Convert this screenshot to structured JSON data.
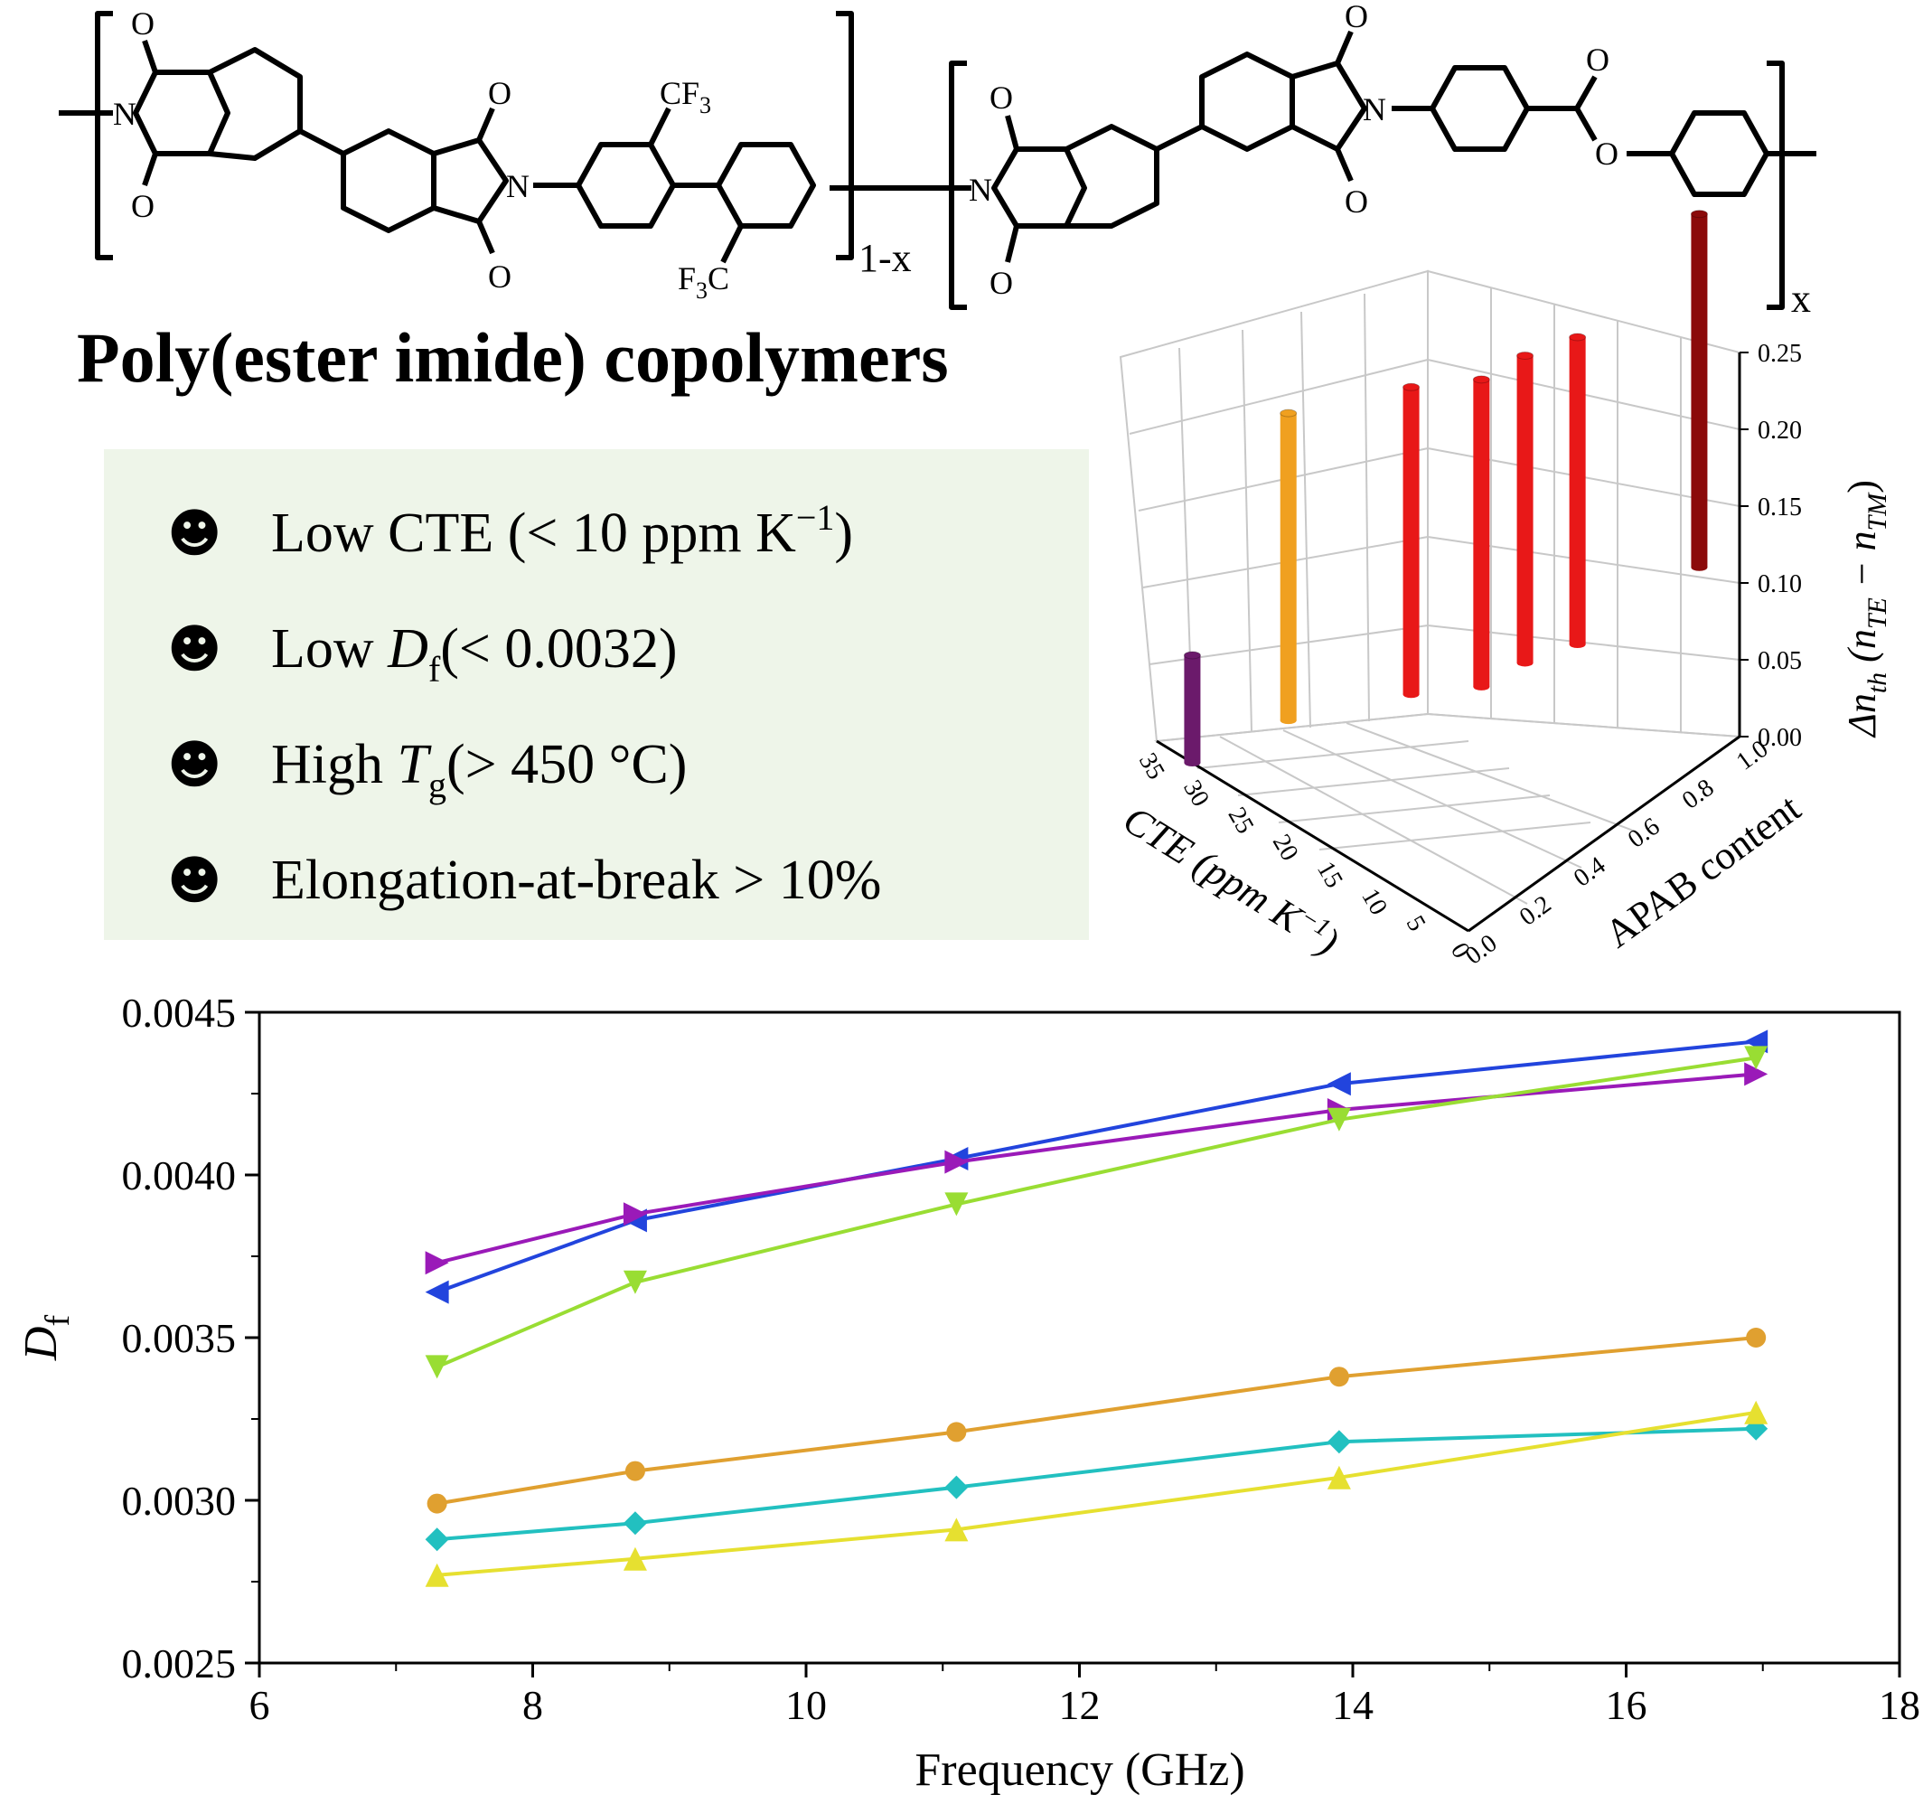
{
  "structure": {
    "atoms": {
      "oxygen": "O",
      "nitrogen": "N",
      "cf3_top": "CF",
      "cf3_top_sub": "3",
      "cf3_bottom_f": "F",
      "cf3_bottom_sub": "3",
      "cf3_bottom_c": "C"
    },
    "subscript_left": "1-x",
    "subscript_right": "x"
  },
  "title": "Poly(ester imide) copolymers",
  "features_box": {
    "background": "#eef5e9",
    "items": [
      {
        "icon": "smiley-icon",
        "text": "Low CTE (< 10 ppm K",
        "sup": "−1",
        "tail": ")"
      },
      {
        "icon": "smiley-icon",
        "text": "Low ",
        "italic": "D",
        "sub": "f",
        "tail": "(< 0.0032)"
      },
      {
        "icon": "smiley-icon",
        "text": "High ",
        "italic": "T",
        "sub": "g",
        "tail": "(> 450 °C)"
      },
      {
        "icon": "smiley-icon",
        "text": "Elongation-at-break > 10%"
      }
    ]
  },
  "chart_data": [
    {
      "type": "bar3d",
      "x_axis": {
        "label": "CTE (ppm K",
        "label_sup": "−1",
        "label_tail": ")",
        "ticks": [
          "35",
          "30",
          "25",
          "20",
          "15",
          "10",
          "5",
          "0"
        ]
      },
      "y_axis": {
        "label": "APAB content",
        "ticks": [
          "0.0",
          "0.2",
          "0.4",
          "0.6",
          "0.8",
          "1.0"
        ]
      },
      "z_axis": {
        "label_delta": "Δn",
        "label_sub": "th",
        "label_mid": " (n",
        "label_sub2": "TE",
        "label_mid2": " − n",
        "label_sub3": "TM",
        "label_tail": ")",
        "ticks": [
          "0.00",
          "0.05",
          "0.10",
          "0.15",
          "0.20",
          "0.25"
        ],
        "zlim": [
          0,
          0.25
        ]
      },
      "bars": [
        {
          "cte": 31,
          "apab": 0.0,
          "value": 0.07,
          "color": "#6b1a6b"
        },
        {
          "cte": 26,
          "apab": 0.2,
          "value": 0.2,
          "color": "#f0a020"
        },
        {
          "cte": 18,
          "apab": 0.4,
          "value": 0.2,
          "color": "#e81818"
        },
        {
          "cte": 13,
          "apab": 0.5,
          "value": 0.2,
          "color": "#e81818"
        },
        {
          "cte": 11,
          "apab": 0.6,
          "value": 0.2,
          "color": "#e81818"
        },
        {
          "cte": 8,
          "apab": 0.7,
          "value": 0.2,
          "color": "#e81818"
        },
        {
          "cte": 3,
          "apab": 1.0,
          "value": 0.23,
          "color": "#8b0a0a"
        }
      ]
    },
    {
      "type": "line",
      "xlabel": "Frequency (GHz)",
      "ylabel": "D",
      "ylabel_sub": "f",
      "xlim": [
        6,
        18
      ],
      "ylim": [
        0.0025,
        0.0045
      ],
      "xticks": [
        "6",
        "8",
        "10",
        "12",
        "14",
        "16",
        "18"
      ],
      "yticks": [
        "0.0025",
        "0.0030",
        "0.0035",
        "0.0040",
        "0.0045"
      ],
      "x": [
        7.3,
        8.75,
        11.1,
        13.9,
        16.95
      ],
      "series": [
        {
          "marker": "triangle-left",
          "color": "#2244dd",
          "values": [
            0.00364,
            0.00386,
            0.00405,
            0.00428,
            0.00441
          ]
        },
        {
          "marker": "triangle-right",
          "color": "#9a1ab8",
          "values": [
            0.00373,
            0.00388,
            0.00404,
            0.0042,
            0.00431
          ]
        },
        {
          "marker": "triangle-down",
          "color": "#99dd33",
          "values": [
            0.00341,
            0.00367,
            0.00391,
            0.00417,
            0.00436
          ]
        },
        {
          "marker": "circle",
          "color": "#e0a030",
          "values": [
            0.00299,
            0.00309,
            0.00321,
            0.00338,
            0.0035
          ]
        },
        {
          "marker": "diamond",
          "color": "#22c0c0",
          "values": [
            0.00288,
            0.00293,
            0.00304,
            0.00318,
            0.00322
          ]
        },
        {
          "marker": "triangle-up",
          "color": "#e6e030",
          "values": [
            0.00277,
            0.00282,
            0.00291,
            0.00307,
            0.00327
          ]
        }
      ]
    }
  ]
}
